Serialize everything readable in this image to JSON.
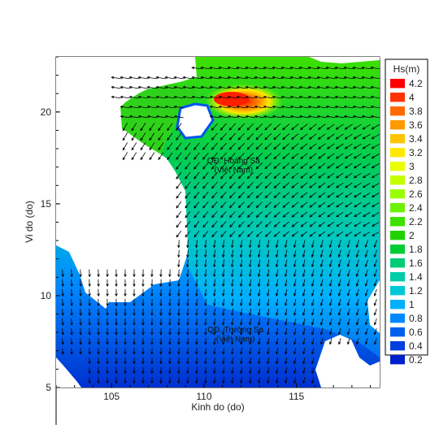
{
  "chart_data": {
    "type": "heatmap",
    "title": "",
    "xlabel": "Kinh do (do)",
    "ylabel": "Vi do (do)",
    "xlim": [
      102,
      119.5
    ],
    "ylim": [
      5,
      23
    ],
    "xticks": [
      "105",
      "110",
      "115"
    ],
    "yticks": [
      "5",
      "10",
      "15",
      "20"
    ],
    "colorbar": {
      "label": "Hs(m)",
      "levels": [
        "4.2",
        "4",
        "3.8",
        "3.6",
        "3.4",
        "3.2",
        "3",
        "2.8",
        "2.6",
        "2.4",
        "2.2",
        "2",
        "1.8",
        "1.6",
        "1.4",
        "1.2",
        "1",
        "0.8",
        "0.6",
        "0.4",
        "0.2"
      ],
      "colors": [
        "#ff0000",
        "#ff3300",
        "#ff6a00",
        "#ff9900",
        "#ffc400",
        "#ffe800",
        "#e8ff00",
        "#c4ff00",
        "#99ff00",
        "#6cf200",
        "#3ee000",
        "#1fd300",
        "#00cc33",
        "#00cc77",
        "#00ccaa",
        "#00c8d8",
        "#00b0ff",
        "#0088ff",
        "#0060ee",
        "#0040dd",
        "#0020cc"
      ]
    },
    "annotations": [
      {
        "text": "QĐ. Hoàng Sa",
        "x": 111.6,
        "y": 17.2
      },
      {
        "text": "(Việt Nam)",
        "x": 111.6,
        "y": 16.7
      },
      {
        "text": "QĐ. Trường Sa",
        "x": 111.7,
        "y": 8.0
      },
      {
        "text": "(Việt Nam)",
        "x": 111.7,
        "y": 7.5
      }
    ],
    "grid": false,
    "legend_position": "right"
  }
}
